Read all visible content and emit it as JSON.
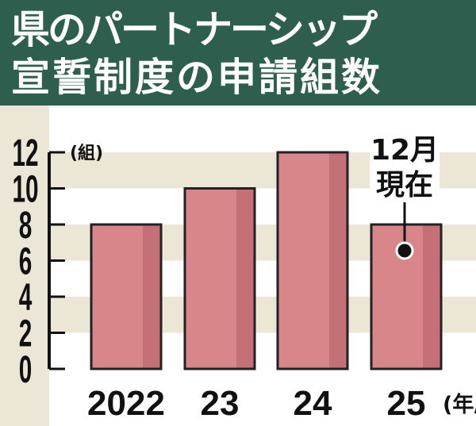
{
  "title": {
    "line1": "県のパートナーシップ",
    "line2": "宣誓制度の申請組数"
  },
  "chart_data": {
    "type": "bar",
    "title": "県のパートナーシップ宣誓制度の申請組数",
    "categories": [
      "2022",
      "23",
      "24",
      "25"
    ],
    "values": [
      8,
      10,
      12,
      8
    ],
    "xlabel": "(年度)",
    "ylabel": "(組)",
    "ylim": [
      0,
      12
    ],
    "yticks": [
      "0",
      "2",
      "4",
      "6",
      "8",
      "10",
      "12"
    ],
    "annotation": {
      "category": "25",
      "line1": "12月",
      "line2": "現在"
    },
    "colors": {
      "bar": "#d8868a",
      "bar_shade": "#c57076",
      "band": "#ece6d6",
      "title_bg": "#2e5e4e"
    }
  }
}
